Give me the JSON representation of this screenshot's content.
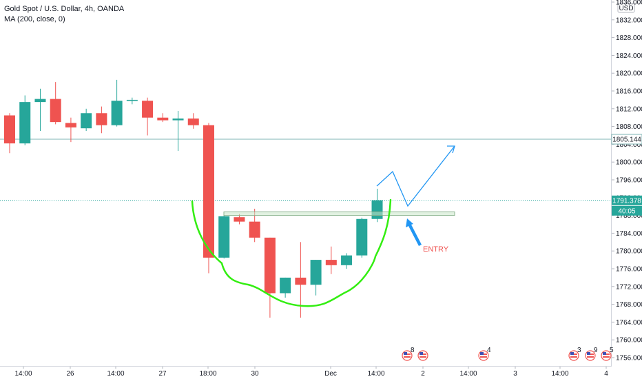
{
  "header": {
    "symbol": "Gold Spot / U.S. Dollar, 4h, OANDA",
    "indicator": "MA (200, close, 0)"
  },
  "price_axis": {
    "currency": "USD",
    "ticks": [
      "1836.000",
      "1832.000",
      "1828.000",
      "1824.000",
      "1820.000",
      "1816.000",
      "1812.000",
      "1808.000",
      "1804.000",
      "1800.000",
      "1796.000",
      "1792.000",
      "1788.000",
      "1784.000",
      "1780.000",
      "1776.000",
      "1772.000",
      "1768.000",
      "1764.000",
      "1760.000",
      "1756.000"
    ]
  },
  "time_axis": {
    "ticks": [
      "14:00",
      "26",
      "14:00",
      "27",
      "18:00",
      "30",
      "Dec",
      "14:00",
      "2",
      "14:00",
      "3",
      "14:00",
      "4"
    ]
  },
  "price_labels": {
    "level": "1805.144",
    "current": "1791.378",
    "countdown": "40:05"
  },
  "events": [
    {
      "icon": "us-flag-icon",
      "count": "8"
    },
    {
      "icon": "us-flag-icon",
      "count": ""
    },
    {
      "icon": "us-flag-icon",
      "count": "4"
    },
    {
      "icon": "us-flag-icon",
      "count": "3"
    },
    {
      "icon": "us-flag-icon",
      "count": "9"
    },
    {
      "icon": "us-flag-icon",
      "count": "5"
    }
  ],
  "annotations": {
    "entry_label": "ENTRY"
  },
  "colors": {
    "up": "#26a69a",
    "down": "#ef5350",
    "pattern": "#33ee11",
    "projection": "#2196f3",
    "level_line": "#7fb5b5"
  },
  "chart_data": {
    "type": "candlestick",
    "title": "Gold Spot / U.S. Dollar, 4h, OANDA",
    "ylim": [
      1754,
      1838
    ],
    "candles": [
      {
        "o": 1810.5,
        "h": 1811.0,
        "l": 1802.0,
        "c": 1804.2
      },
      {
        "o": 1804.2,
        "h": 1815.0,
        "l": 1803.8,
        "c": 1813.5
      },
      {
        "o": 1813.5,
        "h": 1816.5,
        "l": 1807.0,
        "c": 1814.2
      },
      {
        "o": 1814.2,
        "h": 1818.0,
        "l": 1808.5,
        "c": 1809.0
      },
      {
        "o": 1808.8,
        "h": 1810.0,
        "l": 1804.5,
        "c": 1807.8
      },
      {
        "o": 1807.6,
        "h": 1812.0,
        "l": 1807.0,
        "c": 1811.0
      },
      {
        "o": 1811.0,
        "h": 1812.5,
        "l": 1806.5,
        "c": 1808.3
      },
      {
        "o": 1808.3,
        "h": 1818.5,
        "l": 1808.0,
        "c": 1813.8
      },
      {
        "o": 1813.8,
        "h": 1814.5,
        "l": 1813.0,
        "c": 1814.0
      },
      {
        "o": 1813.8,
        "h": 1814.5,
        "l": 1806.0,
        "c": 1810.0
      },
      {
        "o": 1810.0,
        "h": 1811.0,
        "l": 1809.0,
        "c": 1809.4
      },
      {
        "o": 1809.4,
        "h": 1811.5,
        "l": 1802.5,
        "c": 1809.8
      },
      {
        "o": 1809.8,
        "h": 1811.0,
        "l": 1807.5,
        "c": 1808.3
      },
      {
        "o": 1808.3,
        "h": 1808.8,
        "l": 1775.0,
        "c": 1778.5
      },
      {
        "o": 1778.5,
        "h": 1788.0,
        "l": 1778.3,
        "c": 1787.8
      },
      {
        "o": 1787.6,
        "h": 1788.3,
        "l": 1786.0,
        "c": 1786.6
      },
      {
        "o": 1786.6,
        "h": 1789.5,
        "l": 1782.0,
        "c": 1783.0
      },
      {
        "o": 1783.0,
        "h": 1783.0,
        "l": 1765.0,
        "c": 1770.5
      },
      {
        "o": 1770.5,
        "h": 1774.0,
        "l": 1769.5,
        "c": 1774.0
      },
      {
        "o": 1774.0,
        "h": 1782.0,
        "l": 1765.0,
        "c": 1772.4
      },
      {
        "o": 1772.4,
        "h": 1778.0,
        "l": 1770.0,
        "c": 1778.0
      },
      {
        "o": 1778.0,
        "h": 1781.0,
        "l": 1774.8,
        "c": 1776.8
      },
      {
        "o": 1776.8,
        "h": 1779.5,
        "l": 1776.0,
        "c": 1779.0
      },
      {
        "o": 1779.0,
        "h": 1787.5,
        "l": 1778.5,
        "c": 1787.2
      },
      {
        "o": 1787.2,
        "h": 1794.0,
        "l": 1786.5,
        "c": 1791.4
      }
    ],
    "horizontal_lines": [
      1805.144,
      1791.378
    ],
    "resistance_zone": [
      1788.0,
      1788.8
    ]
  }
}
